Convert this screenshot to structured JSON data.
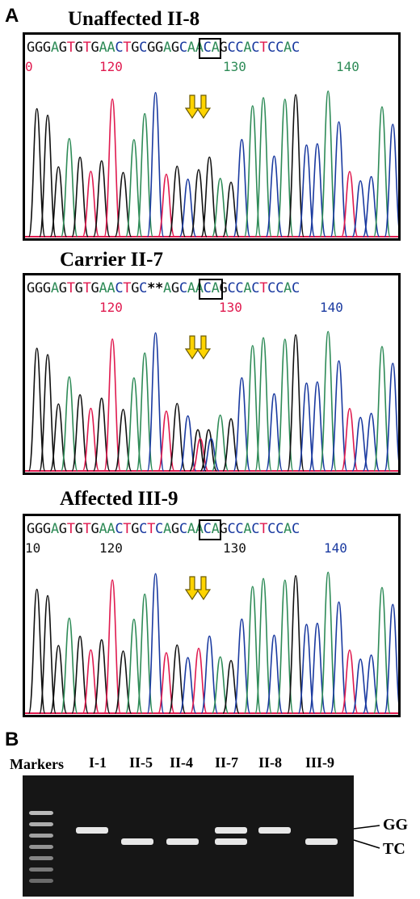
{
  "panel_a": {
    "letter": "A",
    "traces": [
      {
        "title": "Unaffected  II-8",
        "sequence": "GGGAGTGTGAACTGCGGAGCAACAGCCACTCCAC",
        "highlight": "GG",
        "ticks": [
          "0",
          "120",
          "130",
          "140"
        ]
      },
      {
        "title": "Carrier  II-7",
        "sequence": "GGGAGTGTGAACTGC**AGCAACAGCCACTCCAC",
        "highlight": "**",
        "ticks": [
          "120",
          "130",
          "140"
        ]
      },
      {
        "title": "Affected  III-9",
        "sequence": "GGGAGTGTGAACTGCTCAGCAACAGCCACTCCAC",
        "highlight": "TC",
        "ticks": [
          "10",
          "120",
          "130",
          "140"
        ]
      }
    ]
  },
  "panel_b": {
    "letter": "B",
    "markers_label": "Markers",
    "lanes": [
      "I-1",
      "II-5",
      "II-4",
      "II-7",
      "II-8",
      "III-9"
    ],
    "genotypes": [
      "GG",
      "TC",
      "TC",
      "GG/TC",
      "GG",
      "TC"
    ],
    "band_labels": [
      "GG",
      "TC"
    ]
  },
  "colors": {
    "A": "#2e8b57",
    "C": "#1a3aa0",
    "G": "#111111",
    "T": "#e01a4f",
    "baseline": "#e01a4f",
    "arrow_fill": "#ffd400",
    "arrow_stroke": "#6b5a00",
    "gel_bg": "#161616",
    "band": "#f2f2f2"
  }
}
